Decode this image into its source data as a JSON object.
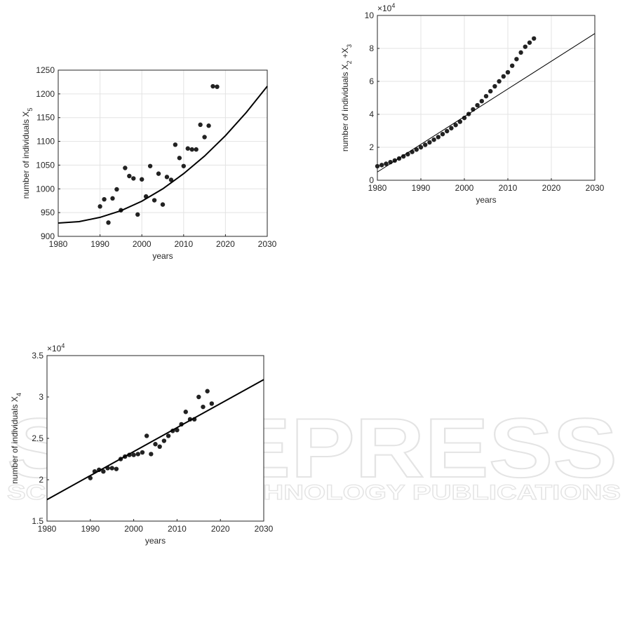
{
  "chart_data": [
    {
      "type": "scatter",
      "xlabel": "years",
      "ylabel": [
        {
          "text": "number of individuals X"
        },
        {
          "text": "5",
          "sub": true
        }
      ],
      "xlim": [
        1980,
        2030
      ],
      "ylim": [
        900,
        1250
      ],
      "xticks": [
        1980,
        1990,
        2000,
        2010,
        2020,
        2030
      ],
      "yticks": [
        900,
        950,
        1000,
        1050,
        1100,
        1150,
        1200,
        1250
      ],
      "grid": true,
      "series": [
        {
          "mode": "markers",
          "color": "#222222",
          "x": [
            1990,
            1991,
            1992,
            1993,
            1994,
            1995,
            1996,
            1997,
            1998,
            1999,
            2000,
            2001,
            2002,
            2003,
            2004,
            2005,
            2006,
            2007,
            2008,
            2009,
            2010,
            2011,
            2012,
            2013,
            2014,
            2015,
            2016,
            2017,
            2018
          ],
          "values": [
            963,
            978,
            929,
            980,
            999,
            955,
            1044,
            1027,
            1022,
            946,
            1020,
            984,
            1048,
            976,
            1032,
            967,
            1025,
            1019,
            1093,
            1065,
            1048,
            1085,
            1083,
            1083,
            1135,
            1109,
            1133,
            1216,
            1215
          ]
        },
        {
          "mode": "line",
          "color": "#000000",
          "x": [
            1980,
            1985,
            1990,
            1995,
            2000,
            2005,
            2010,
            2015,
            2020,
            2025,
            2030
          ],
          "values": [
            928,
            931,
            940,
            954,
            974,
            1000,
            1032,
            1069,
            1112,
            1161,
            1216
          ]
        }
      ]
    },
    {
      "type": "scatter",
      "xlabel": "years",
      "ylabel": [
        {
          "text": "number of individuals X"
        },
        {
          "text": "2",
          "sub": true
        },
        {
          "text": " +X"
        },
        {
          "text": "3",
          "sub": true
        }
      ],
      "exponent": {
        "base": "×10",
        "power": "4"
      },
      "xlim": [
        1980,
        2030
      ],
      "ylim": [
        0,
        10
      ],
      "xticks": [
        1980,
        1990,
        2000,
        2010,
        2020,
        2030
      ],
      "yticks": [
        0,
        2,
        4,
        6,
        8,
        10
      ],
      "grid": true,
      "series": [
        {
          "mode": "markers",
          "color": "#222222",
          "x": [
            1980,
            1981,
            1982,
            1983,
            1984,
            1985,
            1986,
            1987,
            1988,
            1989,
            1990,
            1991,
            1992,
            1993,
            1994,
            1995,
            1996,
            1997,
            1998,
            1999,
            2000,
            2001,
            2002,
            2003,
            2004,
            2005,
            2006,
            2007,
            2008,
            2009,
            2010,
            2011,
            2012,
            2013,
            2014,
            2015,
            2016
          ],
          "values": [
            0.85,
            0.92,
            1.0,
            1.1,
            1.2,
            1.32,
            1.45,
            1.58,
            1.72,
            1.86,
            2.0,
            2.15,
            2.3,
            2.46,
            2.62,
            2.8,
            2.98,
            3.16,
            3.35,
            3.55,
            3.78,
            4.02,
            4.3,
            4.55,
            4.8,
            5.1,
            5.4,
            5.7,
            6.0,
            6.3,
            6.55,
            6.95,
            7.35,
            7.75,
            8.1,
            8.35,
            8.6
          ]
        },
        {
          "mode": "line",
          "color": "#000000",
          "x": [
            1980,
            2030
          ],
          "values": [
            0.5,
            8.9
          ]
        }
      ]
    },
    {
      "type": "scatter",
      "xlabel": "years",
      "ylabel": [
        {
          "text": "number of individuals X"
        },
        {
          "text": "4",
          "sub": true
        }
      ],
      "exponent": {
        "base": "×10",
        "power": "4"
      },
      "xlim": [
        1980,
        2030
      ],
      "ylim": [
        1.5,
        3.5
      ],
      "xticks": [
        1980,
        1990,
        2000,
        2010,
        2020,
        2030
      ],
      "yticks": [
        1.5,
        2,
        2.5,
        3,
        3.5
      ],
      "grid": false,
      "series": [
        {
          "mode": "markers",
          "color": "#222222",
          "x": [
            1990,
            1991,
            1992,
            1993,
            1994,
            1995,
            1996,
            1997,
            1998,
            1999,
            2000,
            2001,
            2002,
            2003,
            2004,
            2005,
            2006,
            2007,
            2008,
            2009,
            2010,
            2011,
            2012,
            2013,
            2014,
            2015,
            2016,
            2017,
            2018
          ],
          "values": [
            2.02,
            2.1,
            2.12,
            2.1,
            2.14,
            2.14,
            2.13,
            2.25,
            2.28,
            2.3,
            2.3,
            2.31,
            2.33,
            2.53,
            2.31,
            2.43,
            2.4,
            2.47,
            2.53,
            2.59,
            2.6,
            2.67,
            2.82,
            2.73,
            2.73,
            3.0,
            2.88,
            3.07,
            2.92
          ]
        },
        {
          "mode": "line",
          "color": "#000000",
          "x": [
            1980,
            2030
          ],
          "values": [
            1.76,
            3.21
          ]
        }
      ]
    }
  ],
  "watermark": {
    "title": "SCITEPRESS",
    "subtitle": "SCIENCE AND TECHNOLOGY PUBLICATIONS"
  }
}
